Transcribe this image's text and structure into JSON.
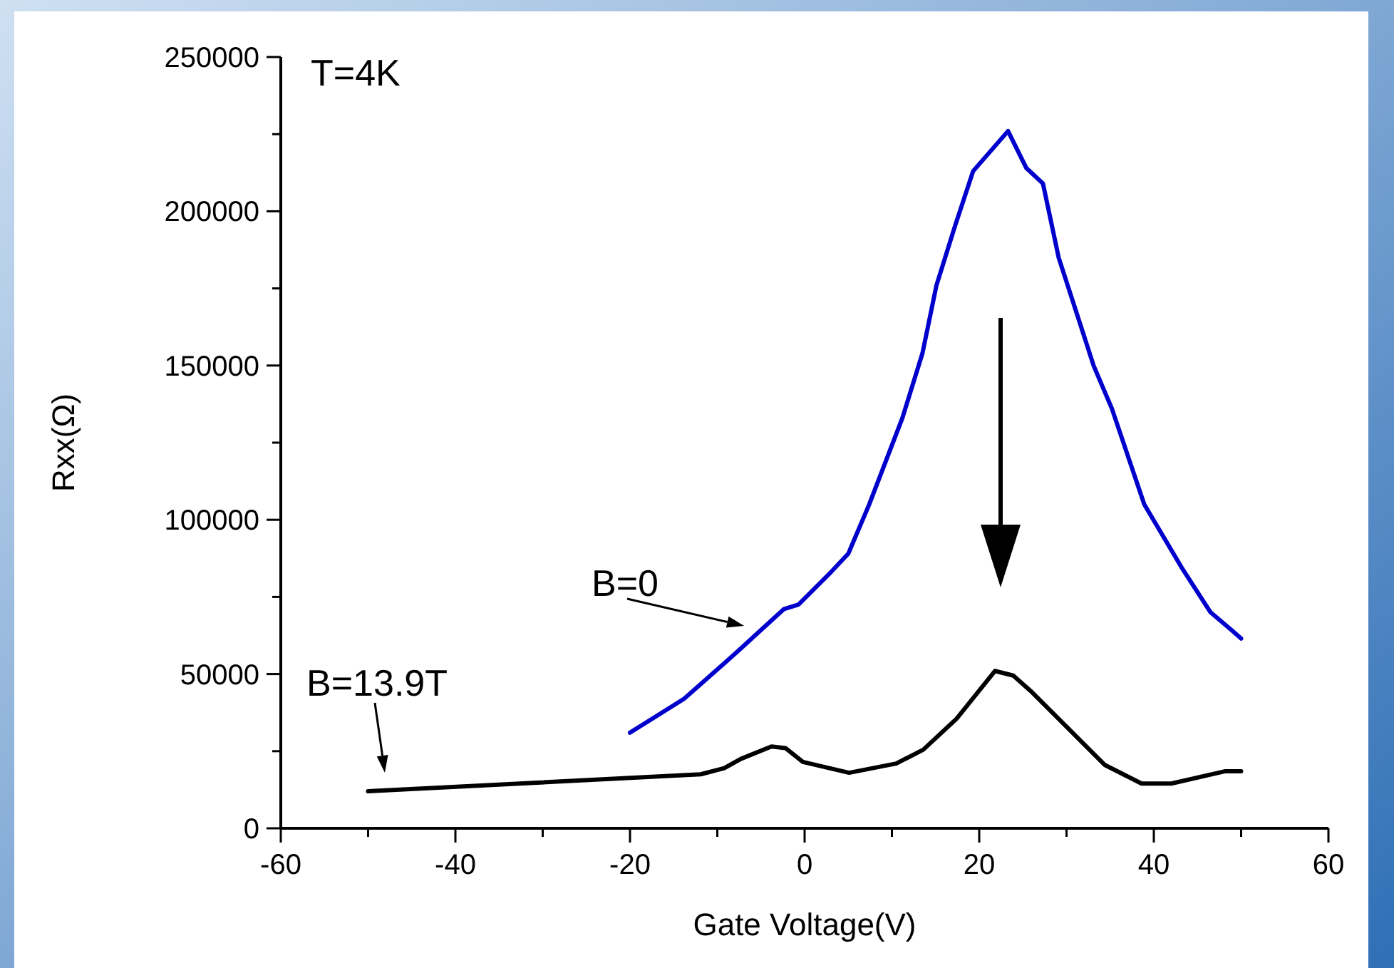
{
  "chart_data": {
    "type": "line",
    "xlabel": "Gate Voltage(V)",
    "ylabel": "Rxx(Ω)",
    "xlim": [
      -60,
      60
    ],
    "xticks": [
      -60,
      {
        "value": -50,
        "label": null
      },
      -40,
      {
        "value": -30,
        "label": null
      },
      -20,
      {
        "value": -10,
        "label": null
      },
      0,
      {
        "value": 10,
        "label": null
      },
      20,
      {
        "value": 30,
        "label": null
      },
      40,
      {
        "value": 50,
        "label": null
      },
      60
    ],
    "ylim": [
      0,
      250000
    ],
    "yticks": [
      0,
      {
        "value": 25000,
        "label": null
      },
      50000,
      {
        "value": 75000,
        "label": null
      },
      100000,
      {
        "value": 125000,
        "label": null
      },
      150000,
      {
        "value": 175000,
        "label": null
      },
      200000,
      {
        "value": 225000,
        "label": null
      },
      250000
    ],
    "grid": false,
    "legend": false,
    "marker": "none",
    "line_style": "solid",
    "annotations": [
      "T=4K"
    ],
    "series": [
      {
        "name": "B=0",
        "color": "#0000cc",
        "x": [
          -20,
          -13.8,
          -7.8,
          -2.4,
          -0.7,
          3,
          5,
          7.4,
          11.2,
          13.5,
          15.1,
          17.2,
          19.3,
          23.3,
          25.4,
          27.3,
          29.1,
          33.1,
          35.2,
          38.9,
          43.3,
          46.5,
          49,
          50
        ],
        "values": [
          31000,
          42000,
          57000,
          71000,
          72500,
          83000,
          89000,
          105000,
          133000,
          154000,
          176000,
          195000,
          213000,
          226000,
          214000,
          209000,
          185000,
          150000,
          136000,
          105000,
          84000,
          70000,
          64000,
          61500
        ]
      },
      {
        "name": "B=13.9T",
        "color": "#000000",
        "x": [
          -50,
          -11.9,
          -9.2,
          -7.3,
          -3.8,
          -2.2,
          -0.2,
          5.1,
          10.5,
          13.6,
          17.4,
          21.8,
          23.9,
          25.9,
          34.4,
          38.6,
          42,
          48.2,
          50
        ],
        "values": [
          12000,
          17500,
          19500,
          22500,
          26500,
          26000,
          21500,
          18000,
          21000,
          25500,
          35500,
          51000,
          49500,
          44500,
          20500,
          14500,
          14500,
          18500,
          18500
        ]
      }
    ]
  }
}
